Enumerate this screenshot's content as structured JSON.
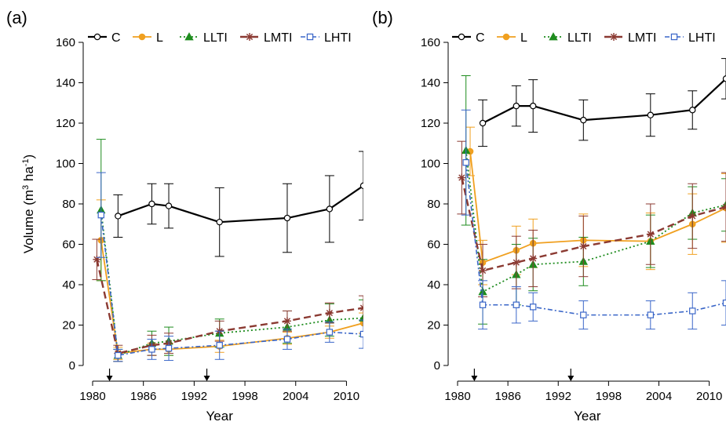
{
  "colors": {
    "C": "#000000",
    "L": "#F0A020",
    "LLTI": "#1E8C1E",
    "LMTI": "#8B3A32",
    "LHTI": "#3A66C8"
  },
  "chart_data": [
    {
      "type": "line",
      "panel_label": "(a)",
      "xlabel": "Year",
      "ylabel": "Volume (m",
      "ylabel_sup1": "3",
      "ylabel_mid": " ha",
      "ylabel_sup2": "-1",
      "ylabel_end": ")",
      "xlim": [
        1980,
        2012
      ],
      "ylim": [
        0,
        160
      ],
      "xticks": [
        1980,
        1986,
        1992,
        1998,
        2004,
        2010
      ],
      "yticks": [
        0,
        20,
        40,
        60,
        80,
        100,
        120,
        140,
        160
      ],
      "treatment_years": [
        1982,
        1993.5
      ],
      "legend_position": "top",
      "series": [
        {
          "name": "C",
          "x": [
            1983,
            1987,
            1989,
            1995,
            2003,
            2008,
            2012
          ],
          "y": [
            74,
            80,
            79,
            71,
            73,
            77.5,
            89
          ],
          "err": [
            10.5,
            10,
            11,
            17,
            17,
            16.5,
            17
          ]
        },
        {
          "name": "L",
          "x": [
            1981,
            1983,
            1987,
            1989,
            1995,
            2003,
            2008,
            2012
          ],
          "y": [
            62,
            6,
            8,
            8,
            9.5,
            13.5,
            16.5,
            21
          ],
          "err": [
            20,
            3,
            3,
            3,
            3,
            3,
            3,
            5
          ]
        },
        {
          "name": "LLTI",
          "x": [
            1981,
            1983,
            1987,
            1989,
            1995,
            2003,
            2008,
            2012
          ],
          "y": [
            77,
            5,
            11,
            12,
            16,
            19,
            22.5,
            23.5
          ],
          "err": [
            35,
            3,
            6,
            7,
            7,
            8,
            8,
            9
          ]
        },
        {
          "name": "LMTI",
          "x": [
            1980.5,
            1983,
            1987,
            1989,
            1995,
            2003,
            2008,
            2012
          ],
          "y": [
            52.5,
            6,
            10,
            11,
            17,
            22,
            26,
            28.5
          ],
          "err": [
            10,
            4,
            5,
            5,
            5,
            5,
            5,
            6
          ]
        },
        {
          "name": "LHTI",
          "x": [
            1981,
            1983,
            1987,
            1989,
            1995,
            2003,
            2008,
            2012
          ],
          "y": [
            74.5,
            5,
            8,
            8.5,
            10,
            13,
            16.5,
            15.5
          ],
          "err": [
            21,
            3,
            5,
            6,
            7,
            5,
            5,
            7
          ]
        }
      ]
    },
    {
      "type": "line",
      "panel_label": "(b)",
      "xlabel": "Year",
      "ylabel": "",
      "xlim": [
        1980,
        2012
      ],
      "ylim": [
        0,
        160
      ],
      "xticks": [
        1980,
        1986,
        1992,
        1998,
        2004,
        2010
      ],
      "yticks": [
        0,
        20,
        40,
        60,
        80,
        100,
        120,
        140,
        160
      ],
      "treatment_years": [
        1982,
        1993.5
      ],
      "legend_position": "top",
      "series": [
        {
          "name": "C",
          "x": [
            1983,
            1987,
            1989,
            1995,
            2003,
            2008,
            2012
          ],
          "y": [
            120,
            128.5,
            128.5,
            121.5,
            124,
            126.5,
            142
          ],
          "err": [
            11.5,
            10,
            13,
            10,
            10.5,
            9.5,
            10
          ]
        },
        {
          "name": "L",
          "x": [
            1981.5,
            1983,
            1987,
            1989,
            1995,
            2003,
            2008,
            2012
          ],
          "y": [
            106,
            51,
            57,
            60.5,
            62,
            61.5,
            70,
            78
          ],
          "err": [
            12,
            11,
            12,
            12,
            13,
            14,
            15,
            17
          ]
        },
        {
          "name": "LLTI",
          "x": [
            1981,
            1983,
            1987,
            1989,
            1995,
            2003,
            2008,
            2012
          ],
          "y": [
            106.5,
            36.5,
            45,
            50,
            51.5,
            61.5,
            75.5,
            79.5
          ],
          "err": [
            37,
            16,
            15,
            13,
            12,
            13,
            13,
            13
          ]
        },
        {
          "name": "LMTI",
          "x": [
            1980.5,
            1983,
            1987,
            1989,
            1995,
            2003,
            2008,
            2012
          ],
          "y": [
            93,
            47,
            51,
            53,
            59,
            65,
            74,
            78.5
          ],
          "err": [
            18,
            13,
            13,
            14,
            15,
            15,
            16,
            17
          ]
        },
        {
          "name": "LHTI",
          "x": [
            1981,
            1983,
            1987,
            1989,
            1995,
            2003,
            2008,
            2012
          ],
          "y": [
            100.5,
            30,
            30,
            29,
            25,
            25,
            27,
            31
          ],
          "err": [
            26,
            12,
            9,
            7,
            7,
            7,
            9,
            11
          ]
        }
      ]
    }
  ]
}
